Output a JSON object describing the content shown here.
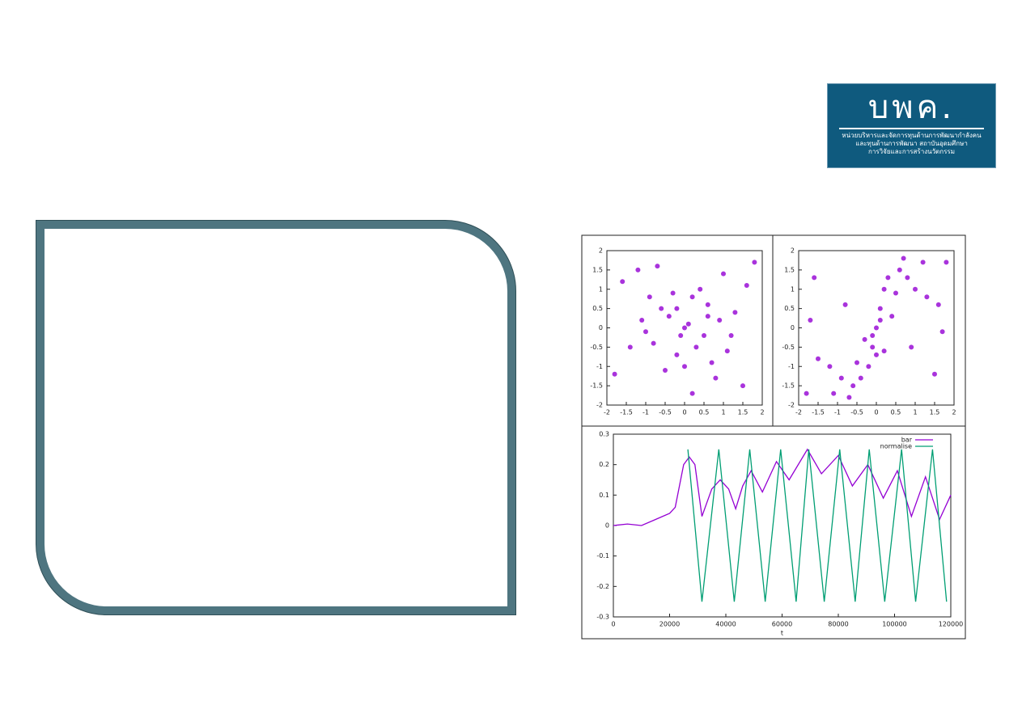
{
  "logo": {
    "title": "บพค.",
    "lines": [
      "หน่วยบริหารและจัดการทุนด้านการพัฒนากำลังคน",
      "และทุนด้านการพัฒนา สถาบันอุดมศึกษา",
      "การวิจัยและการสร้างนวัตกรรม"
    ]
  },
  "chart_data": [
    {
      "type": "scatter",
      "color": "#9400d3",
      "x": [
        0.1,
        -0.4,
        0.5,
        -0.8,
        0.9,
        0.2,
        -0.2,
        0.6,
        -0.6,
        0.3,
        -1.1,
        1.1,
        0.0,
        -0.5,
        0.7,
        -0.9,
        0.4,
        -0.3,
        1.3,
        -1.4,
        0.8,
        -1.6,
        1.6,
        -1.2,
        1.5,
        0.2,
        -0.7,
        1.0,
        -1.8,
        1.8,
        0.0,
        -0.1,
        0.6,
        -1.0,
        1.2,
        -0.2
      ],
      "y": [
        0.1,
        0.3,
        -0.2,
        -0.4,
        0.2,
        0.8,
        -0.7,
        0.6,
        0.5,
        -0.5,
        0.2,
        -0.6,
        -1.0,
        -1.1,
        -0.9,
        0.8,
        1.0,
        0.9,
        0.4,
        -0.5,
        -1.3,
        1.2,
        1.1,
        1.5,
        -1.5,
        -1.7,
        1.6,
        1.4,
        -1.2,
        1.7,
        0.0,
        -0.2,
        0.3,
        -0.1,
        -0.2,
        0.5
      ],
      "xlim": [
        -2,
        2
      ],
      "ylim": [
        -2,
        2
      ],
      "xticks": [
        -2,
        -1.5,
        -1,
        -0.5,
        0,
        0.5,
        1,
        1.5,
        2
      ],
      "yticks": [
        -2,
        -1.5,
        -1,
        -0.5,
        0,
        0.5,
        1,
        1.5,
        2
      ]
    },
    {
      "type": "scatter",
      "color": "#9400d3",
      "x": [
        0.0,
        0.1,
        -0.1,
        0.2,
        0.3,
        0.6,
        0.8,
        1.0,
        1.3,
        1.6,
        -0.2,
        -0.4,
        -0.6,
        -0.9,
        -1.2,
        -1.5,
        0.4,
        -0.3,
        0.5,
        -0.5,
        0.1,
        -0.1,
        1.8,
        -1.8,
        1.5,
        -1.6,
        0.9,
        -0.8,
        0.0,
        0.2,
        -1.7,
        1.7,
        0.7,
        -0.7,
        1.2,
        -1.1
      ],
      "y": [
        0.0,
        0.5,
        -0.5,
        1.0,
        1.3,
        1.5,
        1.3,
        1.0,
        0.8,
        0.6,
        -1.0,
        -1.3,
        -1.5,
        -1.3,
        -1.0,
        -0.8,
        0.3,
        -0.3,
        0.9,
        -0.9,
        0.2,
        -0.2,
        1.7,
        -1.7,
        -1.2,
        1.3,
        -0.5,
        0.6,
        -0.7,
        -0.6,
        0.2,
        -0.1,
        1.8,
        -1.8,
        1.7,
        -1.7
      ],
      "xlim": [
        -2,
        2
      ],
      "ylim": [
        -2,
        2
      ],
      "xticks": [
        -2,
        -1.5,
        -1,
        -0.5,
        0,
        0.5,
        1,
        1.5,
        2
      ],
      "yticks": [
        -2,
        -1.5,
        -1,
        -0.5,
        0,
        0.5,
        1,
        1.5,
        2
      ]
    },
    {
      "type": "line",
      "x_label": "t",
      "xlim": [
        0,
        120000
      ],
      "ylim": [
        -0.3,
        0.3
      ],
      "xticks": [
        0,
        20000,
        40000,
        60000,
        80000,
        100000,
        120000
      ],
      "yticks": [
        -0.3,
        -0.2,
        -0.1,
        0,
        0.1,
        0.2,
        0.3
      ],
      "series": [
        {
          "name": "bar",
          "color": "#9400d3",
          "x": [
            0,
            5000,
            10000,
            15000,
            20000,
            22000,
            25000,
            27000,
            29000,
            31500,
            35000,
            38000,
            41000,
            43500,
            46000,
            49000,
            53000,
            58000,
            62500,
            69000,
            74000,
            80000,
            85000,
            90500,
            96000,
            101000,
            106000,
            111000,
            116000,
            120000
          ],
          "values": [
            0,
            0.005,
            0,
            0.02,
            0.04,
            0.06,
            0.2,
            0.225,
            0.2,
            0.03,
            0.12,
            0.15,
            0.12,
            0.055,
            0.13,
            0.18,
            0.11,
            0.21,
            0.15,
            0.25,
            0.17,
            0.23,
            0.13,
            0.2,
            0.09,
            0.18,
            0.03,
            0.16,
            0.02,
            0.1
          ]
        },
        {
          "name": "normalise",
          "color": "#009e73",
          "x": [
            26500,
            31500,
            37500,
            43000,
            48500,
            54000,
            59500,
            65000,
            69500,
            75000,
            80500,
            86000,
            91000,
            96500,
            102500,
            107500,
            113500,
            118500
          ],
          "values": [
            0.25,
            -0.25,
            0.25,
            -0.25,
            0.25,
            -0.25,
            0.25,
            -0.25,
            0.25,
            -0.25,
            0.25,
            -0.25,
            0.25,
            -0.25,
            0.25,
            -0.25,
            0.25,
            -0.25
          ]
        }
      ]
    }
  ]
}
